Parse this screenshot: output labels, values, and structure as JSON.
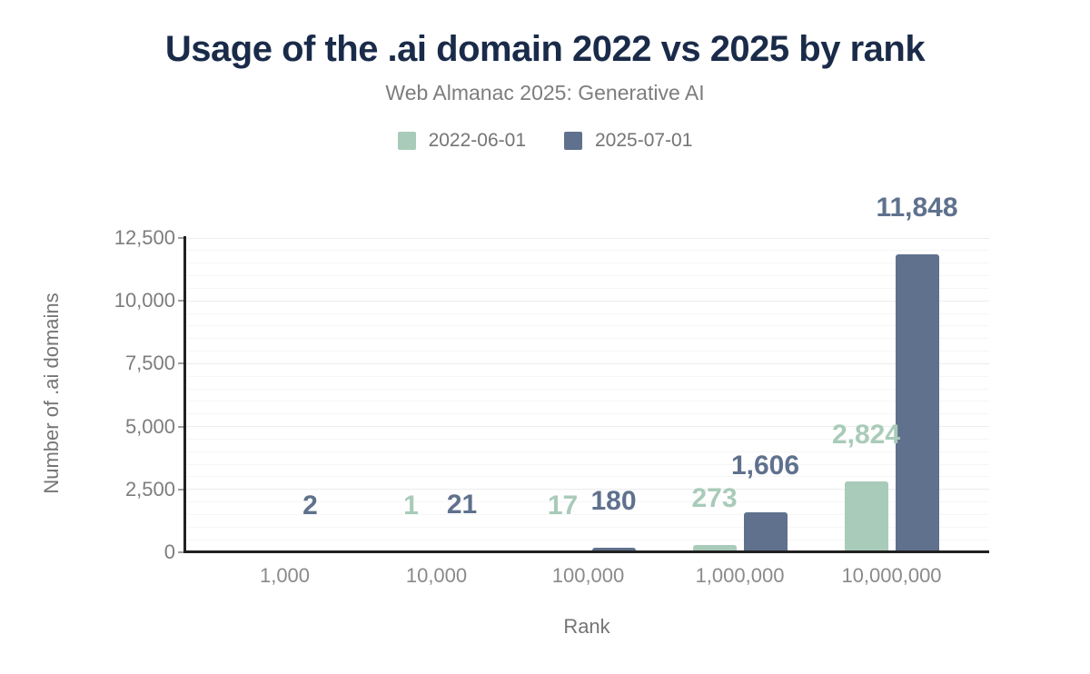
{
  "chart_data": {
    "type": "bar",
    "title": "Usage of the .ai domain 2022 vs 2025 by rank",
    "subtitle": "Web Almanac 2025: Generative AI",
    "categories": [
      "1,000",
      "10,000",
      "100,000",
      "1,000,000",
      "10,000,000"
    ],
    "series": [
      {
        "name": "2022-06-01",
        "color": "#a9cbb9",
        "values": [
          0,
          1,
          17,
          273,
          2824
        ],
        "labels": [
          "",
          "1",
          "17",
          "273",
          "2,824"
        ]
      },
      {
        "name": "2025-07-01",
        "color": "#5f718d",
        "values": [
          2,
          21,
          180,
          1606,
          11848
        ],
        "labels": [
          "2",
          "21",
          "180",
          "1,606",
          "11,848"
        ]
      }
    ],
    "xlabel": "Rank",
    "ylabel": "Number of .ai domains",
    "ylim": [
      0,
      12500
    ],
    "yticks": [
      0,
      2500,
      5000,
      7500,
      10000,
      12500
    ],
    "ytick_labels": [
      "0",
      "2,500",
      "5,000",
      "7,500",
      "10,000",
      "12,500"
    ],
    "minor_grid_step": 500,
    "major_grid_step": 2500,
    "grid": "horizontal",
    "legend_position": "top",
    "bar_value_labels": "above bars, colored same as series"
  },
  "colors": {
    "title_text": "#1a2b49",
    "subtitle_text": "#7d7d7d",
    "axis_line": "#212121",
    "tick_text": "#7d7d7d",
    "series_2022": "#a9cbb9",
    "series_2025": "#5f718d",
    "background": "#ffffff"
  }
}
